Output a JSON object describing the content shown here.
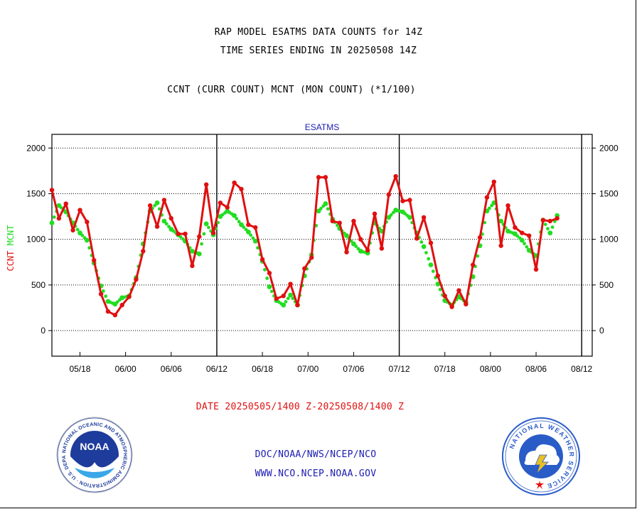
{
  "title": "RAP MODEL ESATMS DATA COUNTS for 14Z",
  "subtitle": "TIME SERIES ENDING IN 20250508 14Z",
  "ratio_label": "CCNT (CURR COUNT) MCNT (MON COUNT) (*1/100)",
  "footer": {
    "date_range": "DATE 20250505/1400 Z-20250508/1400 Z",
    "org_line": "DOC/NOAA/NWS/NCEP/NCO",
    "site_line": "WWW.NCO.NCEP.NOAA.GOV"
  },
  "logos": {
    "noaa": {
      "center_text": "NOAA",
      "ring_text": "NATIONAL OCEANIC AND ATMOSPHERIC ADMINISTRATION · U.S. DEPARTMENT OF COMMERCE"
    },
    "nws": {
      "ring_text": "NATIONAL WEATHER SERVICE"
    }
  },
  "colors": {
    "ccnt": "#e01010",
    "mcnt": "#22dd22",
    "label_blue": "#1a1ab4",
    "noaa_blue": "#1e3c9c",
    "nws_blue": "#2a5cc8"
  },
  "chart_data": {
    "type": "line",
    "top_label": "ESATMS",
    "ylabel_parts": [
      "CCNT",
      "MCNT"
    ],
    "ylim": [
      -280,
      2150
    ],
    "yticks": [
      0,
      500,
      1000,
      1500,
      2000
    ],
    "ytick_labels": [
      "0",
      "500",
      "1000",
      "1500",
      "2000"
    ],
    "grid": true,
    "x_points": 78,
    "xticks": [
      4,
      10.5,
      17,
      23.5,
      30,
      36.5,
      43,
      49.5,
      56,
      62.5,
      69,
      75.5
    ],
    "xtick_labels": [
      "05/18",
      "06/00",
      "06/06",
      "06/12",
      "06/18",
      "07/00",
      "07/06",
      "07/12",
      "07/18",
      "08/00",
      "08/06",
      "08/12"
    ],
    "vertical_lines": [
      23.5,
      49.5,
      75.5
    ],
    "series": [
      {
        "name": "CCNT",
        "style": "solid",
        "values": [
          1540,
          1230,
          1390,
          1100,
          1320,
          1190,
          770,
          400,
          210,
          170,
          280,
          370,
          560,
          870,
          1370,
          1140,
          1430,
          1230,
          1060,
          1060,
          710,
          1030,
          1600,
          1070,
          1400,
          1350,
          1620,
          1550,
          1160,
          1130,
          780,
          630,
          350,
          380,
          510,
          280,
          680,
          800,
          1680,
          1680,
          1200,
          1180,
          860,
          1200,
          1000,
          880,
          1280,
          900,
          1490,
          1690,
          1420,
          1430,
          1010,
          1240,
          960,
          600,
          380,
          260,
          440,
          290,
          720,
          1020,
          1460,
          1630,
          930,
          1370,
          1130,
          1070,
          1040,
          670,
          1210,
          1200,
          1230
        ]
      },
      {
        "name": "MCNT",
        "style": "dotted",
        "values": [
          1180,
          1370,
          1300,
          1180,
          1070,
          990,
          740,
          490,
          320,
          290,
          360,
          380,
          580,
          950,
          1310,
          1400,
          1200,
          1110,
          1050,
          980,
          870,
          840,
          1170,
          1050,
          1250,
          1310,
          1260,
          1160,
          1080,
          980,
          760,
          480,
          330,
          280,
          390,
          280,
          600,
          830,
          1310,
          1390,
          1220,
          1120,
          1040,
          950,
          870,
          850,
          1180,
          1090,
          1240,
          1320,
          1300,
          1240,
          1070,
          920,
          720,
          510,
          330,
          280,
          370,
          310,
          590,
          930,
          1310,
          1400,
          1200,
          1090,
          1060,
          990,
          880,
          820,
          1210,
          1070,
          1260
        ]
      }
    ]
  }
}
